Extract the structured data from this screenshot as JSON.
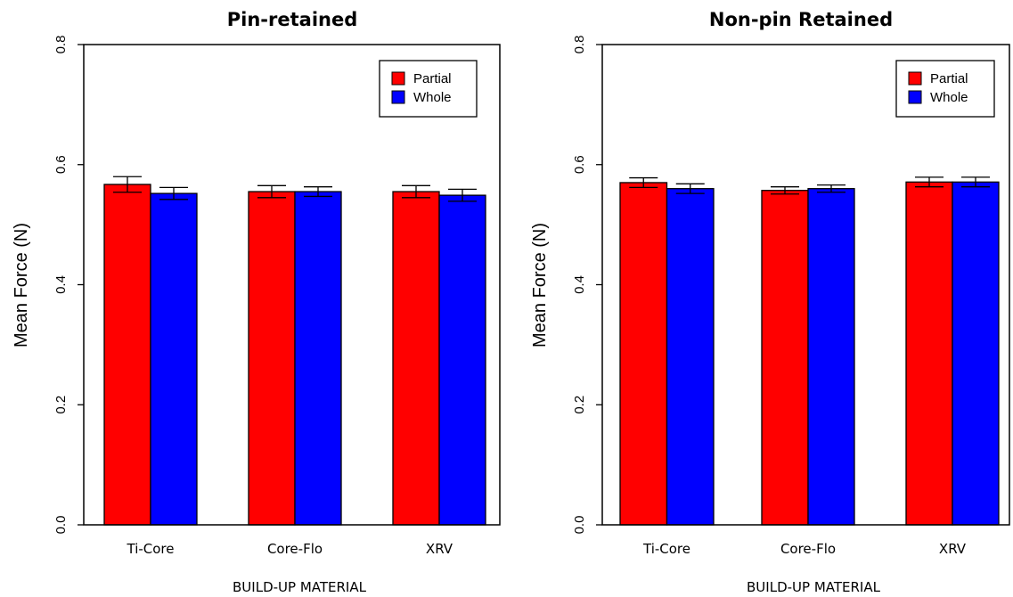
{
  "chart_data": [
    {
      "type": "bar",
      "title": "Pin-retained",
      "xlabel": "BUILD-UP MATERIAL",
      "ylabel": "Mean Force (N)",
      "ylim": [
        0,
        0.8
      ],
      "yticks": [
        "0.0",
        "0.2",
        "0.4",
        "0.6",
        "0.8"
      ],
      "categories": [
        "Ti-Core",
        "Core-Flo",
        "XRV"
      ],
      "series": [
        {
          "name": "Partial",
          "color": "#ff0000",
          "values": [
            0.567,
            0.555,
            0.555
          ],
          "errors": [
            0.013,
            0.01,
            0.01
          ]
        },
        {
          "name": "Whole",
          "color": "#0000ff",
          "values": [
            0.552,
            0.555,
            0.549
          ],
          "errors": [
            0.01,
            0.008,
            0.01
          ]
        }
      ],
      "legend": "top-right",
      "grid": false
    },
    {
      "type": "bar",
      "title": "Non-pin Retained",
      "xlabel": "BUILD-UP MATERIAL",
      "ylabel": "Mean Force (N)",
      "ylim": [
        0,
        0.8
      ],
      "yticks": [
        "0.0",
        "0.2",
        "0.4",
        "0.6",
        "0.8"
      ],
      "categories": [
        "Ti-Core",
        "Core-Flo",
        "XRV"
      ],
      "series": [
        {
          "name": "Partial",
          "color": "#ff0000",
          "values": [
            0.57,
            0.557,
            0.571
          ],
          "errors": [
            0.008,
            0.006,
            0.008
          ]
        },
        {
          "name": "Whole",
          "color": "#0000ff",
          "values": [
            0.56,
            0.56,
            0.571
          ],
          "errors": [
            0.008,
            0.006,
            0.008
          ]
        }
      ],
      "legend": "top-right",
      "grid": false
    }
  ]
}
